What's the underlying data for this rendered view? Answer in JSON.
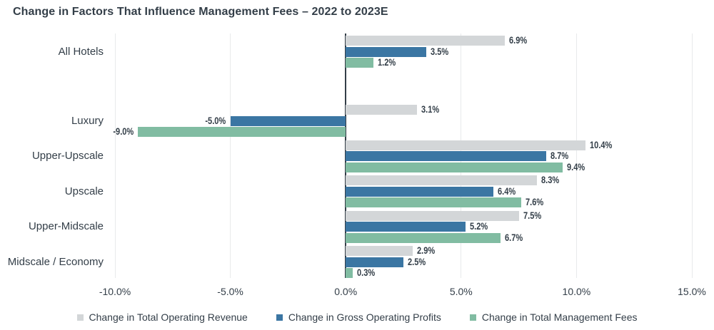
{
  "title": "Change in Factors That Influence Management Fees – 2022 to 2023E",
  "colors": {
    "text": "#333e48",
    "gridline": "#e8eaeb",
    "zero_axis": "#333e48",
    "series_revenue": "#d3d6d8",
    "series_profits": "#3b76a3",
    "series_fees": "#81bca2",
    "background": "#ffffff"
  },
  "chart_data": {
    "type": "bar",
    "orientation": "horizontal",
    "title": "Change in Factors That Influence Management Fees – 2022 to 2023E",
    "categories": [
      "All Hotels",
      "Luxury",
      "Upper-Upscale",
      "Upscale",
      "Upper-Midscale",
      "Midscale / Economy"
    ],
    "series": [
      {
        "name": "Change in Total Operating Revenue",
        "color": "#d3d6d8",
        "values": [
          6.9,
          3.1,
          10.4,
          8.3,
          7.5,
          2.9
        ]
      },
      {
        "name": "Change in Gross Operating Profits",
        "color": "#3b76a3",
        "values": [
          3.5,
          -5.0,
          8.7,
          6.4,
          5.2,
          2.5
        ]
      },
      {
        "name": "Change in Total Management Fees",
        "color": "#81bca2",
        "values": [
          1.2,
          -9.0,
          9.4,
          7.6,
          6.7,
          0.3
        ]
      }
    ],
    "data_labels": [
      [
        "6.9%",
        "3.5%",
        "1.2%"
      ],
      [
        "3.1%",
        "-5.0%",
        "-9.0%"
      ],
      [
        "10.4%",
        "8.7%",
        "9.4%"
      ],
      [
        "8.3%",
        "6.4%",
        "7.6%"
      ],
      [
        "7.5%",
        "5.2%",
        "6.7%"
      ],
      [
        "2.9%",
        "2.5%",
        "0.3%"
      ]
    ],
    "x_ticks": [
      "-10.0%",
      "-5.0%",
      "0.0%",
      "5.0%",
      "10.0%",
      "15.0%"
    ],
    "x_tick_values": [
      -10,
      -5,
      0,
      5,
      10,
      15
    ],
    "xlim": [
      -10,
      15
    ],
    "xlabel": "",
    "ylabel": "",
    "grid": "vertical",
    "legend_position": "bottom"
  }
}
